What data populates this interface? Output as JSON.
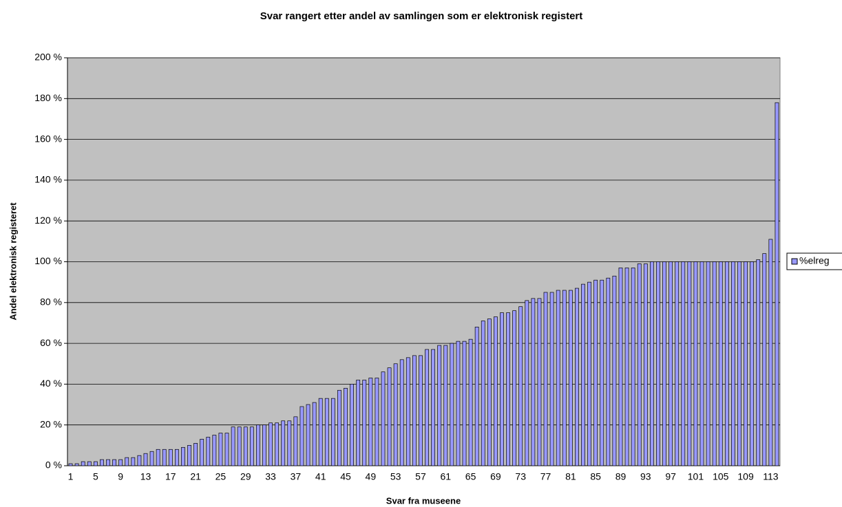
{
  "chart_data": {
    "type": "bar",
    "title": "Svar rangert etter andel av samlingen som er elektronisk registert",
    "x_label": "Svar fra museene",
    "y_label": "Andel elektronisk registeret",
    "categories": [
      "1",
      null,
      null,
      null,
      "5",
      null,
      null,
      null,
      "9",
      null,
      null,
      null,
      "13",
      null,
      null,
      null,
      "17",
      null,
      null,
      null,
      "21",
      null,
      null,
      null,
      "25",
      null,
      null,
      null,
      "29",
      null,
      null,
      null,
      "33",
      null,
      null,
      null,
      "37",
      null,
      null,
      null,
      "41",
      null,
      null,
      null,
      "45",
      null,
      null,
      null,
      "49",
      null,
      null,
      null,
      "53",
      null,
      null,
      null,
      "57",
      null,
      null,
      null,
      "61",
      null,
      null,
      null,
      "65",
      null,
      null,
      null,
      "69",
      null,
      null,
      null,
      "73",
      null,
      null,
      null,
      "77",
      null,
      null,
      null,
      "81",
      null,
      null,
      null,
      "85",
      null,
      null,
      null,
      "89",
      null,
      null,
      null,
      "93",
      null,
      null,
      null,
      "97",
      null,
      null,
      null,
      "101",
      null,
      null,
      null,
      "105",
      null,
      null,
      null,
      "109",
      null,
      null,
      null,
      "113",
      null
    ],
    "series": [
      {
        "name": "%elreg",
        "color": "#9999ff",
        "values": [
          1,
          1,
          2,
          2,
          2,
          3,
          3,
          3,
          3,
          4,
          4,
          5,
          6,
          7,
          8,
          8,
          8,
          8,
          9,
          10,
          11,
          13,
          14,
          15,
          16,
          16,
          19,
          19,
          19,
          19,
          20,
          20,
          21,
          21,
          22,
          22,
          24,
          29,
          30,
          31,
          33,
          33,
          33,
          37,
          38,
          40,
          42,
          42,
          43,
          43,
          46,
          48,
          50,
          52,
          53,
          54,
          54,
          57,
          57,
          59,
          59,
          60,
          61,
          61,
          62,
          68,
          71,
          72,
          73,
          75,
          75,
          76,
          78,
          81,
          82,
          82,
          85,
          85,
          86,
          86,
          86,
          87,
          89,
          90,
          91,
          91,
          92,
          93,
          97,
          97,
          97,
          99,
          99,
          100,
          100,
          100,
          100,
          100,
          100,
          100,
          100,
          100,
          100,
          100,
          100,
          100,
          100,
          100,
          100,
          100,
          101,
          104,
          111,
          178
        ]
      }
    ],
    "ylim": [
      0,
      200
    ],
    "yticks": [
      {
        "value": 0,
        "label": "0 %"
      },
      {
        "value": 20,
        "label": "20 %"
      },
      {
        "value": 40,
        "label": "40 %"
      },
      {
        "value": 60,
        "label": "60 %"
      },
      {
        "value": 80,
        "label": "80 %"
      },
      {
        "value": 100,
        "label": "100 %"
      },
      {
        "value": 120,
        "label": "120 %"
      },
      {
        "value": 140,
        "label": "140 %"
      },
      {
        "value": 160,
        "label": "160 %"
      },
      {
        "value": 180,
        "label": "180 %"
      },
      {
        "value": 200,
        "label": "200 %"
      }
    ],
    "grid": true,
    "legend": "right",
    "plot_background": "#c0c0c0"
  }
}
